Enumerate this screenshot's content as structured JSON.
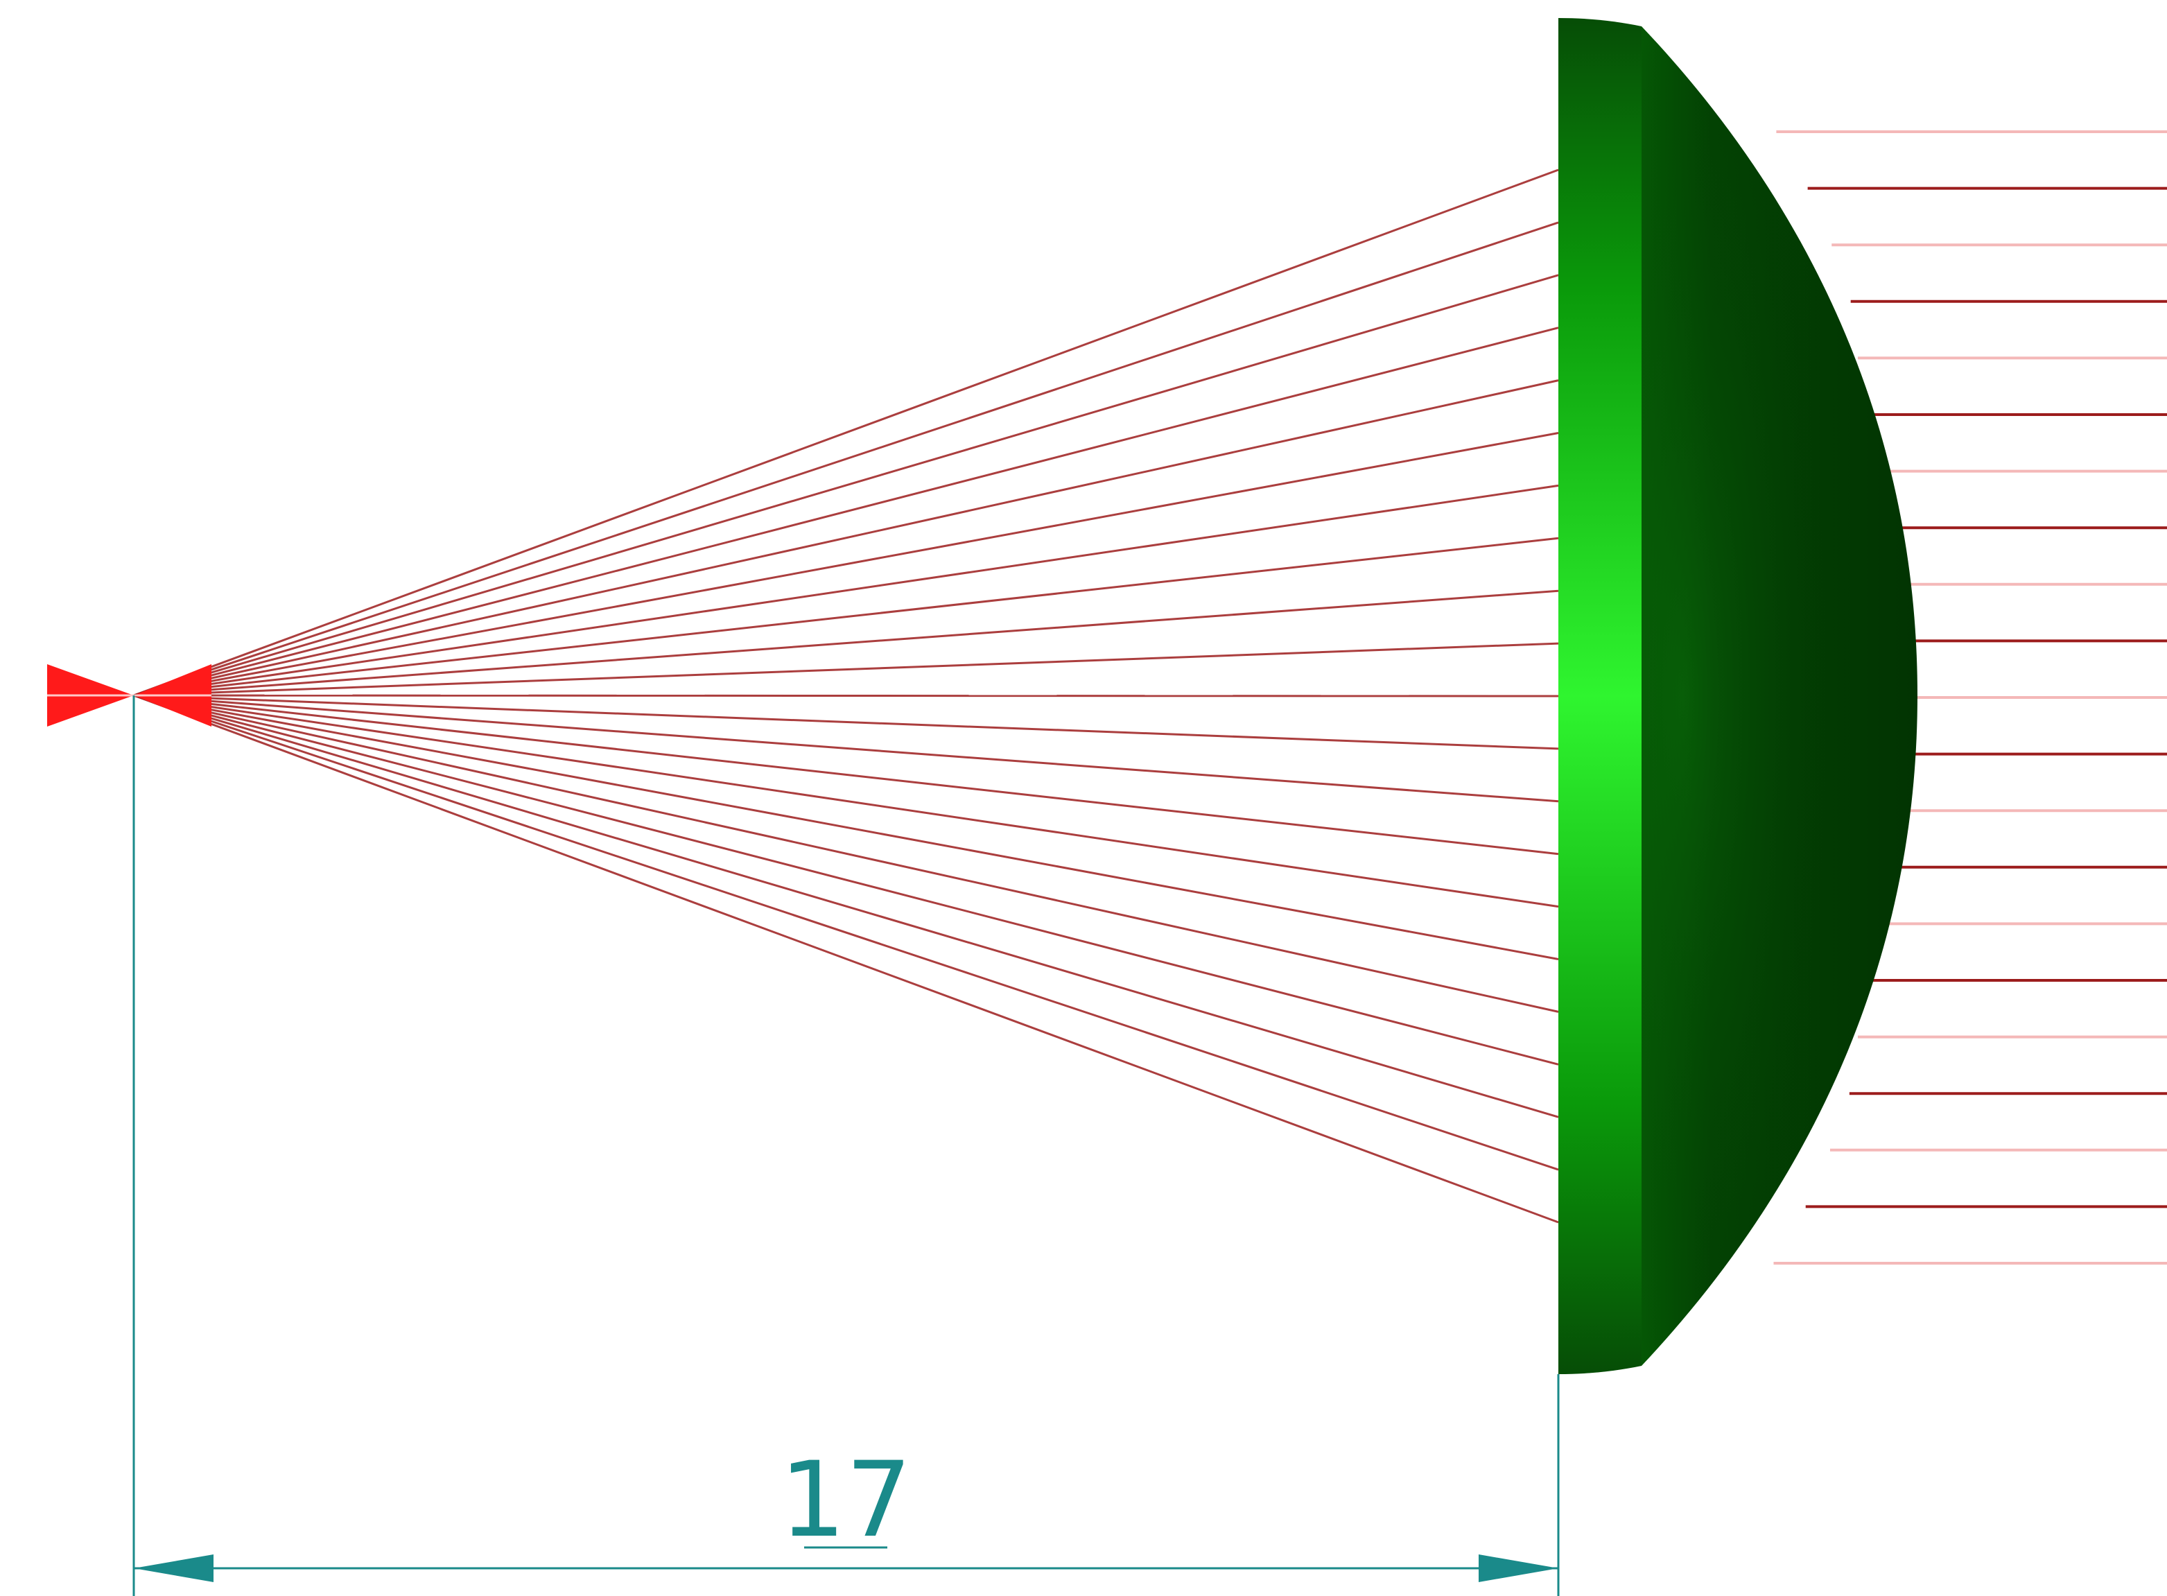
{
  "colors": {
    "background": "#ffffff",
    "ray_dark": "#9c1c1c",
    "ray_light": "#f4b8b8",
    "focus_red": "#ff1a1a",
    "lens_flat_light": "#2ff52f",
    "lens_flat_mid": "#12b812",
    "lens_flat_dark": "#064d06",
    "lens_curved": "#033d03",
    "dimension": "#1a8a8a"
  },
  "diagram": {
    "dimension_label": "17",
    "ray_count": 21
  }
}
